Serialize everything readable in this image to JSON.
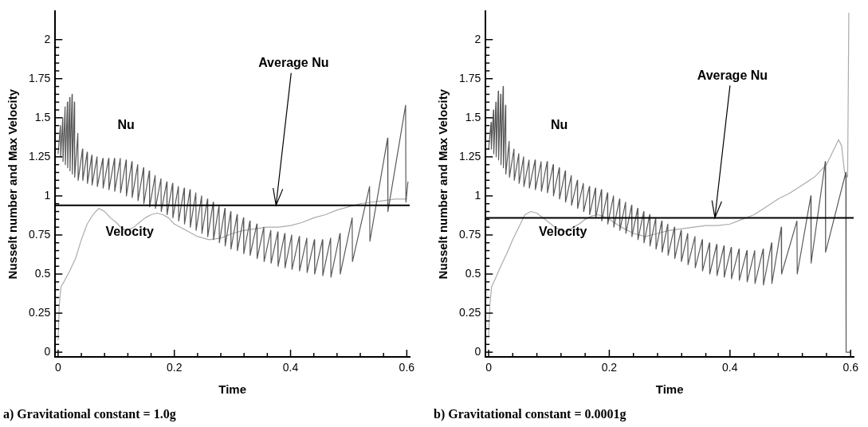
{
  "chart_data": [
    {
      "type": "line",
      "title": "a) Gravitational constant = 1.0g",
      "xlabel": "Time",
      "ylabel": "Nusselt number and Max Velocity",
      "xlim": [
        -0.005,
        0.605
      ],
      "xticks": [
        0,
        {
          "value": 0.04,
          "label": null
        },
        {
          "value": 0.08,
          "label": null
        },
        {
          "value": 0.12,
          "label": null
        },
        {
          "value": 0.16,
          "label": null
        },
        0.2,
        {
          "value": 0.24,
          "label": null
        },
        {
          "value": 0.28,
          "label": null
        },
        {
          "value": 0.32,
          "label": null
        },
        {
          "value": 0.36,
          "label": null
        },
        0.4,
        {
          "value": 0.44,
          "label": null
        },
        {
          "value": 0.48,
          "label": null
        },
        {
          "value": 0.52,
          "label": null
        },
        {
          "value": 0.56,
          "label": null
        },
        0.6
      ],
      "ylim": [
        -0.03,
        2.18
      ],
      "yticks": [
        0,
        {
          "value": 0.05,
          "label": null
        },
        {
          "value": 0.1,
          "label": null
        },
        {
          "value": 0.15,
          "label": null
        },
        {
          "value": 0.2,
          "label": null
        },
        0.25,
        {
          "value": 0.3,
          "label": null
        },
        {
          "value": 0.35,
          "label": null
        },
        {
          "value": 0.4,
          "label": null
        },
        {
          "value": 0.45,
          "label": null
        },
        0.5,
        {
          "value": 0.55,
          "label": null
        },
        {
          "value": 0.6,
          "label": null
        },
        {
          "value": 0.65,
          "label": null
        },
        {
          "value": 0.7,
          "label": null
        },
        0.75,
        {
          "value": 0.8,
          "label": null
        },
        {
          "value": 0.85,
          "label": null
        },
        {
          "value": 0.9,
          "label": null
        },
        {
          "value": 0.95,
          "label": null
        },
        1,
        {
          "value": 1.05,
          "label": null
        },
        {
          "value": 1.1,
          "label": null
        },
        {
          "value": 1.15,
          "label": null
        },
        {
          "value": 1.2,
          "label": null
        },
        1.25,
        {
          "value": 1.3,
          "label": null
        },
        {
          "value": 1.35,
          "label": null
        },
        {
          "value": 1.4,
          "label": null
        },
        {
          "value": 1.45,
          "label": null
        },
        1.5,
        {
          "value": 1.55,
          "label": null
        },
        {
          "value": 1.6,
          "label": null
        },
        {
          "value": 1.65,
          "label": null
        },
        {
          "value": 1.7,
          "label": null
        },
        1.75,
        {
          "value": 1.8,
          "label": null
        },
        {
          "value": 1.85,
          "label": null
        },
        {
          "value": 1.9,
          "label": null
        },
        {
          "value": 1.95,
          "label": null
        },
        2
      ],
      "grid": false,
      "legend": false,
      "marker": "none",
      "line_style": "solid",
      "series": [
        {
          "color": "#5a5a5a",
          "x": [
            0,
            0.004,
            0.0045,
            0.008,
            0.0085,
            0.012,
            0.0125,
            0.016,
            0.0165,
            0.02,
            0.0205,
            0.024,
            0.0245,
            0.028,
            0.0285,
            0.034,
            0.0345,
            0.042,
            0.0425,
            0.05,
            0.0505,
            0.058,
            0.0585,
            0.067,
            0.0675,
            0.077,
            0.0775,
            0.087,
            0.0875,
            0.097,
            0.0975,
            0.107,
            0.1075,
            0.117,
            0.1175,
            0.127,
            0.1275,
            0.137,
            0.1375,
            0.147,
            0.1475,
            0.157,
            0.1575,
            0.167,
            0.1675,
            0.177,
            0.1775,
            0.187,
            0.1875,
            0.197,
            0.1975,
            0.207,
            0.2075,
            0.217,
            0.2175,
            0.227,
            0.2275,
            0.237,
            0.2375,
            0.247,
            0.2475,
            0.257,
            0.2575,
            0.267,
            0.2675,
            0.277,
            0.2775,
            0.287,
            0.2875,
            0.297,
            0.2975,
            0.308,
            0.3085,
            0.319,
            0.3195,
            0.33,
            0.3305,
            0.342,
            0.3425,
            0.354,
            0.3545,
            0.366,
            0.3665,
            0.378,
            0.3785,
            0.39,
            0.3905,
            0.402,
            0.4025,
            0.415,
            0.4155,
            0.428,
            0.4285,
            0.441,
            0.4415,
            0.455,
            0.4555,
            0.469,
            0.4695,
            0.485,
            0.4855,
            0.506,
            0.5065,
            0.536,
            0.5365,
            0.567,
            0.5675,
            0.598,
            0.5985,
            0.602
          ],
          "values": [
            1.27,
            1.45,
            1.25,
            1.5,
            1.22,
            1.57,
            1.2,
            1.6,
            1.18,
            1.63,
            1.16,
            1.65,
            1.14,
            1.6,
            1.12,
            1.4,
            1.1,
            1.3,
            1.1,
            1.28,
            1.08,
            1.26,
            1.07,
            1.25,
            1.06,
            1.24,
            1.05,
            1.24,
            1.04,
            1.24,
            1.03,
            1.24,
            1.02,
            1.23,
            1.0,
            1.22,
            0.99,
            1.2,
            0.97,
            1.18,
            0.95,
            1.16,
            0.93,
            1.13,
            0.92,
            1.11,
            0.9,
            1.09,
            0.88,
            1.08,
            0.86,
            1.06,
            0.84,
            1.05,
            0.82,
            1.04,
            0.8,
            1.02,
            0.78,
            1.0,
            0.76,
            0.98,
            0.74,
            0.96,
            0.72,
            0.94,
            0.7,
            0.92,
            0.68,
            0.9,
            0.66,
            0.88,
            0.65,
            0.86,
            0.63,
            0.84,
            0.62,
            0.82,
            0.6,
            0.8,
            0.58,
            0.78,
            0.57,
            0.77,
            0.55,
            0.76,
            0.54,
            0.75,
            0.53,
            0.74,
            0.52,
            0.73,
            0.51,
            0.72,
            0.5,
            0.72,
            0.49,
            0.73,
            0.48,
            0.76,
            0.5,
            0.86,
            0.58,
            1.06,
            0.71,
            1.37,
            0.9,
            1.58,
            0.96,
            1.09
          ]
        },
        {
          "color": "#ababab",
          "x": [
            0,
            0.002,
            0.005,
            0.01,
            0.02,
            0.03,
            0.04,
            0.05,
            0.06,
            0.07,
            0.08,
            0.09,
            0.1,
            0.11,
            0.12,
            0.13,
            0.14,
            0.15,
            0.16,
            0.17,
            0.18,
            0.19,
            0.2,
            0.22,
            0.24,
            0.26,
            0.28,
            0.3,
            0.32,
            0.34,
            0.36,
            0.38,
            0.4,
            0.42,
            0.44,
            0.46,
            0.48,
            0.5,
            0.52,
            0.54,
            0.56,
            0.58,
            0.6
          ],
          "values": [
            0.08,
            0.3,
            0.42,
            0.45,
            0.52,
            0.6,
            0.72,
            0.82,
            0.88,
            0.92,
            0.9,
            0.86,
            0.83,
            0.79,
            0.78,
            0.8,
            0.83,
            0.86,
            0.88,
            0.89,
            0.88,
            0.86,
            0.82,
            0.78,
            0.74,
            0.72,
            0.73,
            0.76,
            0.78,
            0.79,
            0.8,
            0.8,
            0.81,
            0.83,
            0.86,
            0.88,
            0.91,
            0.93,
            0.95,
            0.96,
            0.97,
            0.98,
            0.98
          ]
        }
      ],
      "ref_lines": [
        {
          "axis": "y",
          "value": 0.94,
          "color": "#000000"
        }
      ],
      "annotations": [
        "Nu",
        "Velocity",
        {
          "text": "Average Nu",
          "x": 0.375,
          "y": 0.94
        }
      ]
    },
    {
      "type": "line",
      "title": "b) Gravitational constant = 0.0001g",
      "xlabel": "Time",
      "ylabel": "Nusselt number and Max Velocity",
      "xlim": [
        -0.005,
        0.605
      ],
      "xticks": [
        0,
        {
          "value": 0.04,
          "label": null
        },
        {
          "value": 0.08,
          "label": null
        },
        {
          "value": 0.12,
          "label": null
        },
        {
          "value": 0.16,
          "label": null
        },
        0.2,
        {
          "value": 0.24,
          "label": null
        },
        {
          "value": 0.28,
          "label": null
        },
        {
          "value": 0.32,
          "label": null
        },
        {
          "value": 0.36,
          "label": null
        },
        0.4,
        {
          "value": 0.44,
          "label": null
        },
        {
          "value": 0.48,
          "label": null
        },
        {
          "value": 0.52,
          "label": null
        },
        {
          "value": 0.56,
          "label": null
        },
        0.6
      ],
      "ylim": [
        -0.03,
        2.18
      ],
      "yticks": [
        0,
        {
          "value": 0.05,
          "label": null
        },
        {
          "value": 0.1,
          "label": null
        },
        {
          "value": 0.15,
          "label": null
        },
        {
          "value": 0.2,
          "label": null
        },
        0.25,
        {
          "value": 0.3,
          "label": null
        },
        {
          "value": 0.35,
          "label": null
        },
        {
          "value": 0.4,
          "label": null
        },
        {
          "value": 0.45,
          "label": null
        },
        0.5,
        {
          "value": 0.55,
          "label": null
        },
        {
          "value": 0.6,
          "label": null
        },
        {
          "value": 0.65,
          "label": null
        },
        {
          "value": 0.7,
          "label": null
        },
        0.75,
        {
          "value": 0.8,
          "label": null
        },
        {
          "value": 0.85,
          "label": null
        },
        {
          "value": 0.9,
          "label": null
        },
        {
          "value": 0.95,
          "label": null
        },
        1,
        {
          "value": 1.05,
          "label": null
        },
        {
          "value": 1.1,
          "label": null
        },
        {
          "value": 1.15,
          "label": null
        },
        {
          "value": 1.2,
          "label": null
        },
        1.25,
        {
          "value": 1.3,
          "label": null
        },
        {
          "value": 1.35,
          "label": null
        },
        {
          "value": 1.4,
          "label": null
        },
        {
          "value": 1.45,
          "label": null
        },
        1.5,
        {
          "value": 1.55,
          "label": null
        },
        {
          "value": 1.6,
          "label": null
        },
        {
          "value": 1.65,
          "label": null
        },
        {
          "value": 1.7,
          "label": null
        },
        1.75,
        {
          "value": 1.8,
          "label": null
        },
        {
          "value": 1.85,
          "label": null
        },
        {
          "value": 1.9,
          "label": null
        },
        {
          "value": 1.95,
          "label": null
        },
        2
      ],
      "grid": false,
      "legend": false,
      "marker": "none",
      "line_style": "solid",
      "series": [
        {
          "color": "#5a5a5a",
          "x": [
            0,
            0.004,
            0.0045,
            0.008,
            0.0085,
            0.012,
            0.0125,
            0.016,
            0.0165,
            0.02,
            0.0205,
            0.024,
            0.0245,
            0.028,
            0.0285,
            0.034,
            0.0345,
            0.042,
            0.0425,
            0.05,
            0.0505,
            0.058,
            0.0585,
            0.067,
            0.0675,
            0.077,
            0.0775,
            0.087,
            0.0875,
            0.097,
            0.0975,
            0.107,
            0.1075,
            0.117,
            0.1175,
            0.127,
            0.1275,
            0.137,
            0.1375,
            0.147,
            0.1475,
            0.157,
            0.1575,
            0.167,
            0.1675,
            0.177,
            0.1775,
            0.187,
            0.1875,
            0.197,
            0.1975,
            0.207,
            0.2075,
            0.217,
            0.2175,
            0.227,
            0.2275,
            0.237,
            0.2375,
            0.247,
            0.2475,
            0.257,
            0.2575,
            0.267,
            0.2675,
            0.277,
            0.2775,
            0.287,
            0.2875,
            0.297,
            0.2975,
            0.308,
            0.3085,
            0.319,
            0.3195,
            0.33,
            0.3305,
            0.342,
            0.3425,
            0.354,
            0.3545,
            0.366,
            0.3665,
            0.378,
            0.3785,
            0.39,
            0.3905,
            0.402,
            0.4025,
            0.415,
            0.4155,
            0.428,
            0.4285,
            0.441,
            0.4415,
            0.455,
            0.4555,
            0.469,
            0.4695,
            0.485,
            0.4855,
            0.511,
            0.5115,
            0.534,
            0.5345,
            0.558,
            0.5585,
            0.592,
            0.5925,
            0.6
          ],
          "values": [
            1.3,
            1.47,
            1.3,
            1.55,
            1.27,
            1.6,
            1.25,
            1.67,
            1.23,
            1.65,
            1.2,
            1.7,
            1.18,
            1.58,
            1.14,
            1.35,
            1.12,
            1.3,
            1.1,
            1.27,
            1.08,
            1.25,
            1.06,
            1.23,
            1.05,
            1.23,
            1.04,
            1.22,
            1.03,
            1.22,
            1.02,
            1.2,
            1.0,
            1.18,
            0.98,
            1.16,
            0.96,
            1.13,
            0.94,
            1.1,
            0.92,
            1.08,
            0.9,
            1.06,
            0.88,
            1.05,
            0.86,
            1.04,
            0.84,
            1.02,
            0.82,
            1.0,
            0.8,
            0.98,
            0.78,
            0.96,
            0.76,
            0.94,
            0.74,
            0.92,
            0.72,
            0.9,
            0.7,
            0.88,
            0.68,
            0.86,
            0.66,
            0.84,
            0.64,
            0.82,
            0.62,
            0.8,
            0.6,
            0.78,
            0.58,
            0.76,
            0.56,
            0.74,
            0.54,
            0.72,
            0.52,
            0.7,
            0.5,
            0.69,
            0.49,
            0.68,
            0.48,
            0.67,
            0.47,
            0.66,
            0.46,
            0.65,
            0.45,
            0.65,
            0.44,
            0.66,
            0.43,
            0.7,
            0.44,
            0.8,
            0.5,
            0.84,
            0.5,
            1.0,
            0.57,
            1.22,
            0.64,
            1.15,
            0,
            0
          ]
        },
        {
          "color": "#ababab",
          "x": [
            0,
            0.002,
            0.005,
            0.01,
            0.02,
            0.03,
            0.04,
            0.05,
            0.06,
            0.07,
            0.08,
            0.09,
            0.1,
            0.11,
            0.12,
            0.13,
            0.14,
            0.15,
            0.16,
            0.17,
            0.18,
            0.19,
            0.2,
            0.22,
            0.24,
            0.26,
            0.28,
            0.3,
            0.32,
            0.34,
            0.36,
            0.38,
            0.4,
            0.42,
            0.44,
            0.46,
            0.48,
            0.5,
            0.52,
            0.54,
            0.56,
            0.57,
            0.58,
            0.585,
            0.59,
            0.595,
            0.597
          ],
          "values": [
            0.1,
            0.3,
            0.42,
            0.46,
            0.55,
            0.63,
            0.72,
            0.8,
            0.88,
            0.9,
            0.89,
            0.86,
            0.83,
            0.8,
            0.78,
            0.77,
            0.8,
            0.82,
            0.85,
            0.87,
            0.88,
            0.87,
            0.85,
            0.8,
            0.76,
            0.74,
            0.76,
            0.78,
            0.79,
            0.8,
            0.81,
            0.81,
            0.82,
            0.85,
            0.88,
            0.93,
            0.98,
            1.02,
            1.07,
            1.12,
            1.2,
            1.28,
            1.36,
            1.32,
            1.15,
            1.12,
            2.17
          ]
        }
      ],
      "ref_lines": [
        {
          "axis": "y",
          "value": 0.86,
          "color": "#000000"
        }
      ],
      "annotations": [
        "Nu",
        "Velocity",
        {
          "text": "Average Nu",
          "x": 0.375,
          "y": 0.86
        }
      ]
    }
  ]
}
